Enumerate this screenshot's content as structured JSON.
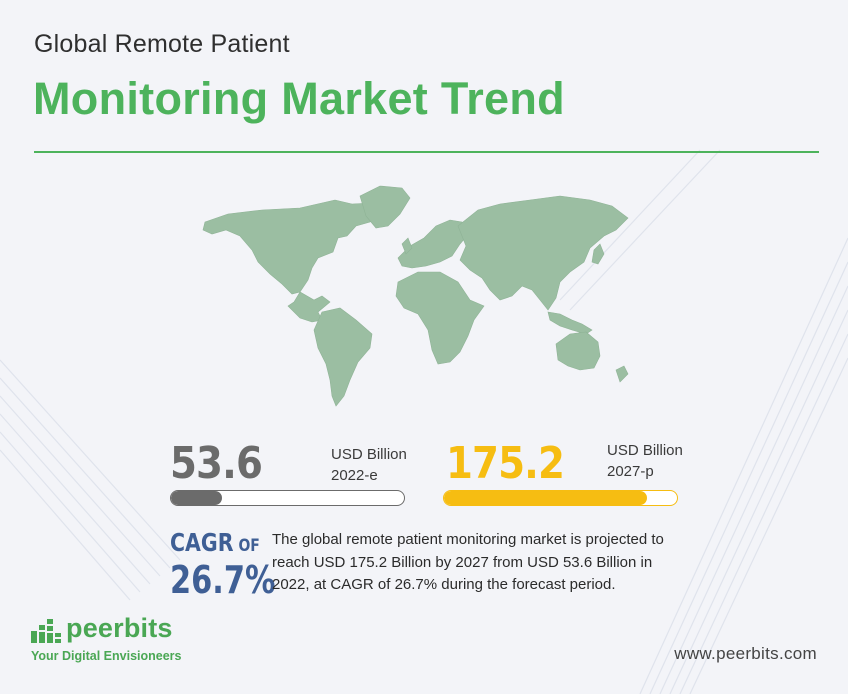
{
  "header": {
    "subtitle": "Global Remote Patient",
    "title": "Monitoring Market Trend"
  },
  "stats": [
    {
      "value": "53.6",
      "unit": "USD Billion",
      "period": "2022-e",
      "fill_fraction": 0.22,
      "color": "#6b6b6b"
    },
    {
      "value": "175.2",
      "unit": "USD Billion",
      "period": "2027-p",
      "fill_fraction": 0.87,
      "color": "#f6bd12"
    }
  ],
  "cagr": {
    "label": "CAGR",
    "of": "OF",
    "value": "26.7%"
  },
  "description": "The global remote patient monitoring market is projected to reach USD 175.2 Billion by 2027 from USD 53.6 Billion in 2022, at CAGR of 26.7% during the forecast period.",
  "brand": {
    "name": "peerbits",
    "tagline": "Your Digital Envisioneers",
    "website": "www.peerbits.com"
  },
  "colors": {
    "accent_green": "#4db35c",
    "map_green": "#9bbea2",
    "cagr_blue": "#3f5f95",
    "yellow": "#f6bd12",
    "grey": "#6b6b6b",
    "background": "#f3f4f8"
  },
  "icons": {
    "map": "world-map-illustration",
    "logo": "peerbits-bar-logo"
  }
}
